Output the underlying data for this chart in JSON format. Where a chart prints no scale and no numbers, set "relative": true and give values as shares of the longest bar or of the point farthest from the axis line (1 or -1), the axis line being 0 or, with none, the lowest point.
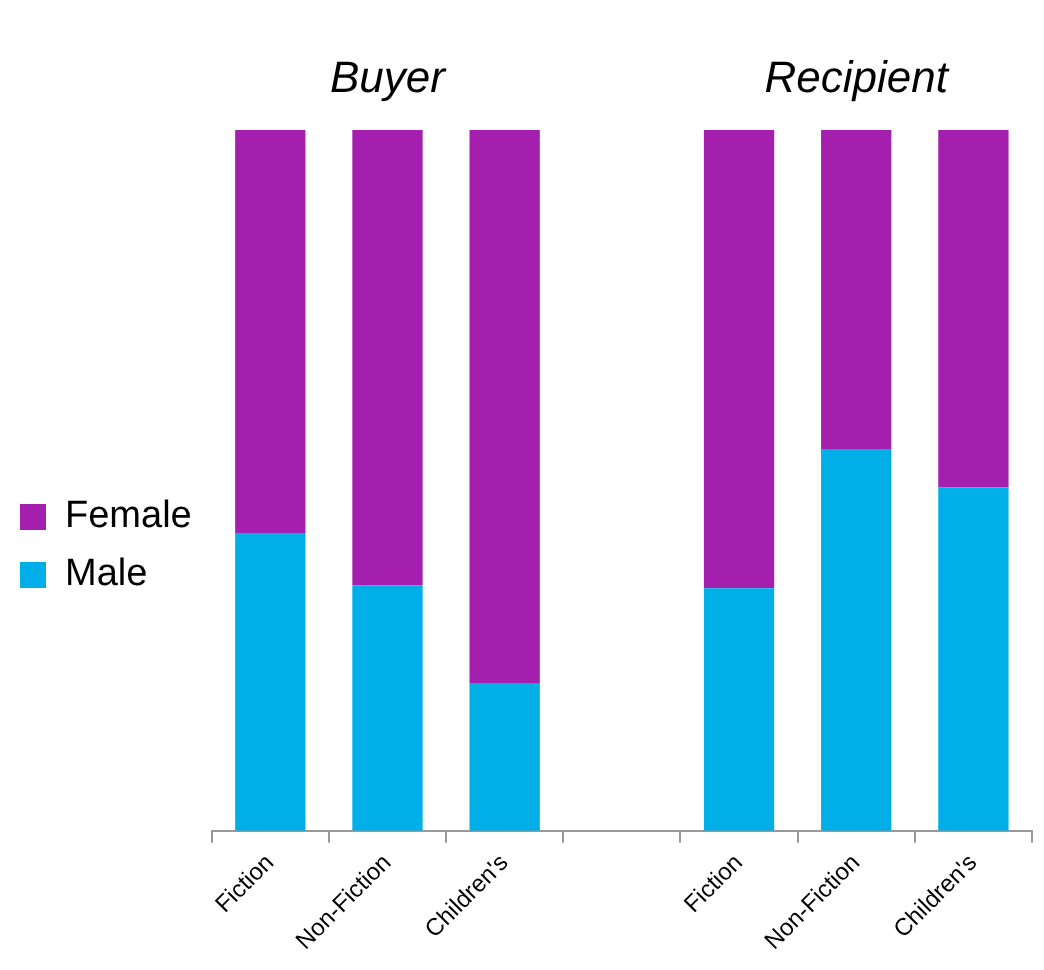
{
  "chart_data": {
    "type": "bar",
    "stacked": true,
    "relative": true,
    "legend": "left",
    "grid": false,
    "categories": [
      "Fiction",
      "Non-Fiction",
      "Children's",
      null,
      "Fiction",
      "Non-Fiction",
      "Children's"
    ],
    "annotations": [
      "Buyer",
      "Recipient"
    ],
    "series": [
      {
        "name": "Male",
        "color": "#00aee8",
        "values": [
          0.425,
          0.35,
          0.21,
          null,
          0.346,
          0.545,
          0.49
        ]
      },
      {
        "name": "Female",
        "color": "#a51fae",
        "values": [
          0.575,
          0.65,
          0.79,
          null,
          0.654,
          0.455,
          0.51
        ]
      }
    ]
  }
}
